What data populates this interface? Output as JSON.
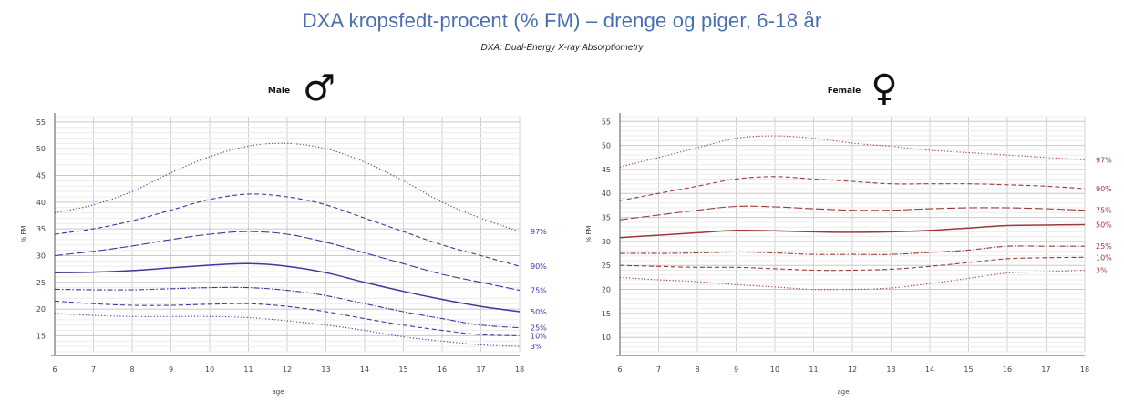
{
  "title": "DXA kropsfedt-procent (% FM) – drenge og piger, 6-18 år",
  "subtitle": "DXA: Dual-Energy X-ray Absorptiometry",
  "chart_data": [
    {
      "type": "line",
      "panel_label": "Male",
      "symbol": "♂",
      "ylabel": "% FM",
      "xlabel": "age",
      "xlim": [
        6,
        18
      ],
      "ylim": [
        12,
        56
      ],
      "x_ticks": [
        6,
        7,
        8,
        9,
        10,
        11,
        12,
        13,
        14,
        15,
        16,
        17,
        18
      ],
      "y_ticks": [
        15,
        20,
        25,
        30,
        35,
        40,
        45,
        50,
        55
      ],
      "grid": true,
      "line_color": "#3a3a9c",
      "x": [
        6,
        7,
        8,
        9,
        10,
        11,
        12,
        13,
        14,
        15,
        16,
        17,
        18
      ],
      "series": [
        {
          "name": "97%",
          "dash": "dotted",
          "values": [
            38,
            39.5,
            42,
            45.5,
            48.5,
            50.5,
            51,
            50,
            47.5,
            44,
            40,
            37,
            34.5
          ]
        },
        {
          "name": "90%",
          "dash": "dashed",
          "values": [
            34,
            35,
            36.5,
            38.5,
            40.5,
            41.5,
            41,
            39.5,
            37,
            34.5,
            32,
            30,
            28
          ]
        },
        {
          "name": "75%",
          "dash": "longdash",
          "values": [
            30,
            30.8,
            31.8,
            33,
            34,
            34.5,
            34,
            32.5,
            30.5,
            28.5,
            26.5,
            25,
            23.5
          ]
        },
        {
          "name": "50%",
          "dash": "solid",
          "values": [
            26.8,
            26.9,
            27.2,
            27.7,
            28.2,
            28.5,
            28,
            26.8,
            25,
            23.3,
            21.8,
            20.5,
            19.5
          ]
        },
        {
          "name": "25%",
          "dash": "dashdot",
          "values": [
            23.7,
            23.6,
            23.6,
            23.8,
            24,
            24,
            23.5,
            22.5,
            21,
            19.5,
            18.2,
            17,
            16.5
          ]
        },
        {
          "name": "10%",
          "dash": "dashed",
          "values": [
            21.5,
            21,
            20.7,
            20.7,
            20.9,
            21,
            20.5,
            19.5,
            18.2,
            17,
            16,
            15.2,
            15
          ]
        },
        {
          "name": "3%",
          "dash": "dotted",
          "values": [
            19.2,
            18.8,
            18.6,
            18.6,
            18.6,
            18.4,
            17.8,
            17,
            16,
            14.8,
            14,
            13.3,
            13
          ]
        }
      ]
    },
    {
      "type": "line",
      "panel_label": "Female",
      "symbol": "♀",
      "ylabel": "% FM",
      "xlabel": "age",
      "xlim": [
        6,
        18
      ],
      "ylim": [
        7,
        56
      ],
      "x_ticks": [
        6,
        7,
        8,
        9,
        10,
        11,
        12,
        13,
        14,
        15,
        16,
        17,
        18
      ],
      "y_ticks": [
        10,
        15,
        20,
        25,
        30,
        35,
        40,
        45,
        50,
        55
      ],
      "grid": true,
      "line_color": "#9c3a3a",
      "x": [
        6,
        7,
        8,
        9,
        10,
        11,
        12,
        13,
        14,
        15,
        16,
        17,
        18
      ],
      "series": [
        {
          "name": "97%",
          "dash": "dotted",
          "values": [
            45.5,
            47.5,
            49.5,
            51.5,
            52,
            51.5,
            50.5,
            49.8,
            49,
            48.5,
            48,
            47.5,
            47
          ]
        },
        {
          "name": "90%",
          "dash": "dashed",
          "values": [
            38.5,
            40,
            41.5,
            43,
            43.5,
            43,
            42.5,
            42,
            42,
            42,
            41.8,
            41.5,
            41
          ]
        },
        {
          "name": "75%",
          "dash": "longdash",
          "values": [
            34.5,
            35.5,
            36.5,
            37.3,
            37.2,
            36.8,
            36.5,
            36.5,
            36.8,
            37,
            37,
            36.8,
            36.5
          ]
        },
        {
          "name": "50%",
          "dash": "solid",
          "values": [
            30.8,
            31.3,
            31.8,
            32.3,
            32.2,
            32,
            31.9,
            32,
            32.3,
            32.8,
            33.3,
            33.4,
            33.5
          ]
        },
        {
          "name": "25%",
          "dash": "dashdot",
          "values": [
            27.5,
            27.5,
            27.6,
            27.8,
            27.6,
            27.3,
            27.3,
            27.3,
            27.7,
            28.2,
            29,
            29,
            29
          ]
        },
        {
          "name": "10%",
          "dash": "dashed",
          "values": [
            25,
            24.8,
            24.6,
            24.6,
            24.3,
            24,
            24,
            24.2,
            24.8,
            25.6,
            26.4,
            26.6,
            26.7
          ]
        },
        {
          "name": "3%",
          "dash": "dotted",
          "values": [
            22.5,
            22,
            21.6,
            21,
            20.5,
            20,
            20,
            20.3,
            21.2,
            22.3,
            23.4,
            23.7,
            24
          ]
        }
      ]
    }
  ]
}
